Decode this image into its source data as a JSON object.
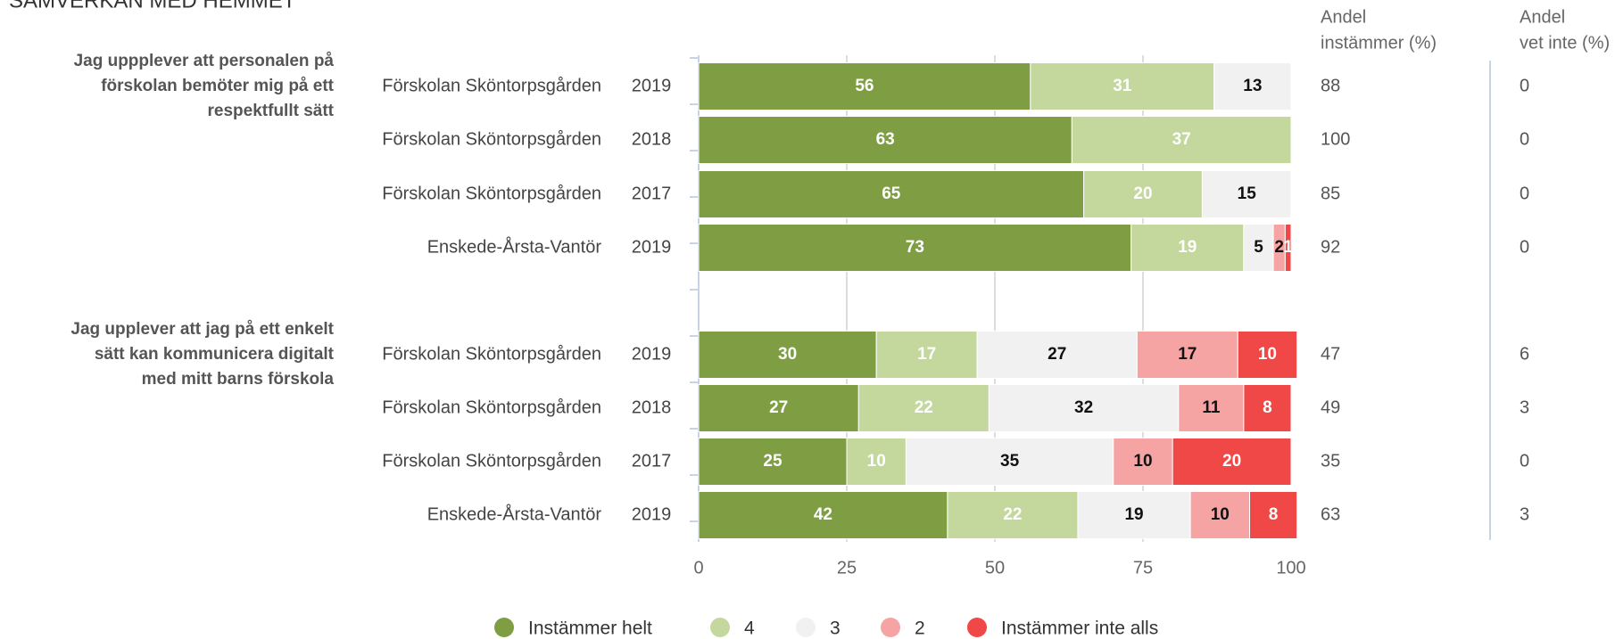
{
  "chart_data": {
    "type": "bar",
    "orientation": "horizontal",
    "stacked": true,
    "title": "SAMVERKAN MED HEMMET",
    "groups": [
      {
        "label": [
          "Jag uppplever att personalen på",
          "förskolan bemöter mig på ett",
          "respektfullt sätt"
        ],
        "units": [
          "Förskolan Sköntorpsgården",
          "Förskolan Sköntorpsgården",
          "Förskolan Sköntorpsgården",
          "Enskede-Årsta-Vantör"
        ],
        "years": [
          "2019",
          "2018",
          "2017",
          "2019"
        ]
      },
      {
        "label": [
          "Jag upplever att jag på ett enkelt",
          "sätt kan kommunicera digitalt",
          "med mitt barns förskola"
        ],
        "units": [
          "Förskolan Sköntorpsgården",
          "Förskolan Sköntorpsgården",
          "Förskolan Sköntorpsgården",
          "Enskede-Årsta-Vantör"
        ],
        "years": [
          "2019",
          "2018",
          "2017",
          "2019"
        ]
      }
    ],
    "series": [
      {
        "name": "Instämmer helt",
        "color": "#7f9e44",
        "values": [
          56,
          63,
          65,
          73,
          30,
          27,
          25,
          42
        ]
      },
      {
        "name": "4",
        "color": "#c4d89e",
        "values": [
          31,
          37,
          20,
          19,
          17,
          22,
          10,
          22
        ]
      },
      {
        "name": "3",
        "color": "#f1f1f1",
        "values": [
          13,
          0,
          15,
          5,
          27,
          32,
          35,
          19
        ]
      },
      {
        "name": "2",
        "color": "#f5a3a3",
        "values": [
          0,
          0,
          0,
          2,
          17,
          11,
          10,
          10
        ]
      },
      {
        "name": "Instämmer inte alls",
        "color": "#f04747",
        "values": [
          0,
          0,
          0,
          1,
          10,
          8,
          20,
          8
        ]
      }
    ],
    "columns": [
      {
        "header": [
          "Andel",
          "instämmer (%)"
        ],
        "values": [
          88,
          100,
          85,
          92,
          47,
          49,
          35,
          63
        ]
      },
      {
        "header": [
          "Andel",
          "vet inte (%)"
        ],
        "values": [
          0,
          0,
          0,
          0,
          6,
          3,
          0,
          3
        ]
      }
    ],
    "xlim": [
      0,
      100
    ],
    "xticks": [
      0,
      25,
      50,
      75,
      100
    ],
    "grid": true,
    "legend": "bottom"
  }
}
